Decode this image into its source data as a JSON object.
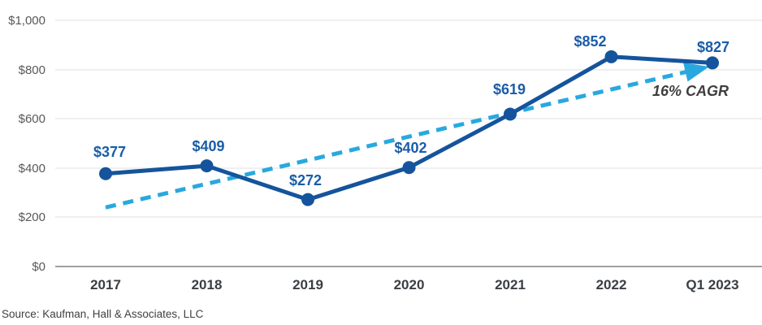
{
  "chart_data": {
    "type": "line",
    "title": "",
    "categories": [
      "2017",
      "2018",
      "2019",
      "2020",
      "2021",
      "2022",
      "Q1 2023"
    ],
    "series": [
      {
        "name": "value",
        "values": [
          377,
          409,
          272,
          402,
          619,
          852,
          827
        ]
      }
    ],
    "data_labels": [
      "$377",
      "$409",
      "$272",
      "$402",
      "$619",
      "$852",
      "$827"
    ],
    "y_ticks": [
      {
        "label": "$1,000",
        "value": 1000
      },
      {
        "label": "$800",
        "value": 800
      },
      {
        "label": "$600",
        "value": 600
      },
      {
        "label": "$400",
        "value": 400
      },
      {
        "label": "$200",
        "value": 200
      },
      {
        "label": "$0",
        "value": 0
      }
    ],
    "ylim": [
      0,
      1000
    ],
    "grid": "horizontal",
    "legend": "none",
    "trendline": {
      "label": "16% CAGR",
      "start_value": 240,
      "end_value": 812,
      "style": "dashed-arrow"
    },
    "colors": {
      "line": "#15549c",
      "marker": "#15549c",
      "trend": "#29a8e0",
      "data_label": "#1a5da8"
    }
  },
  "source": "Source: Kaufman, Hall & Associates, LLC"
}
